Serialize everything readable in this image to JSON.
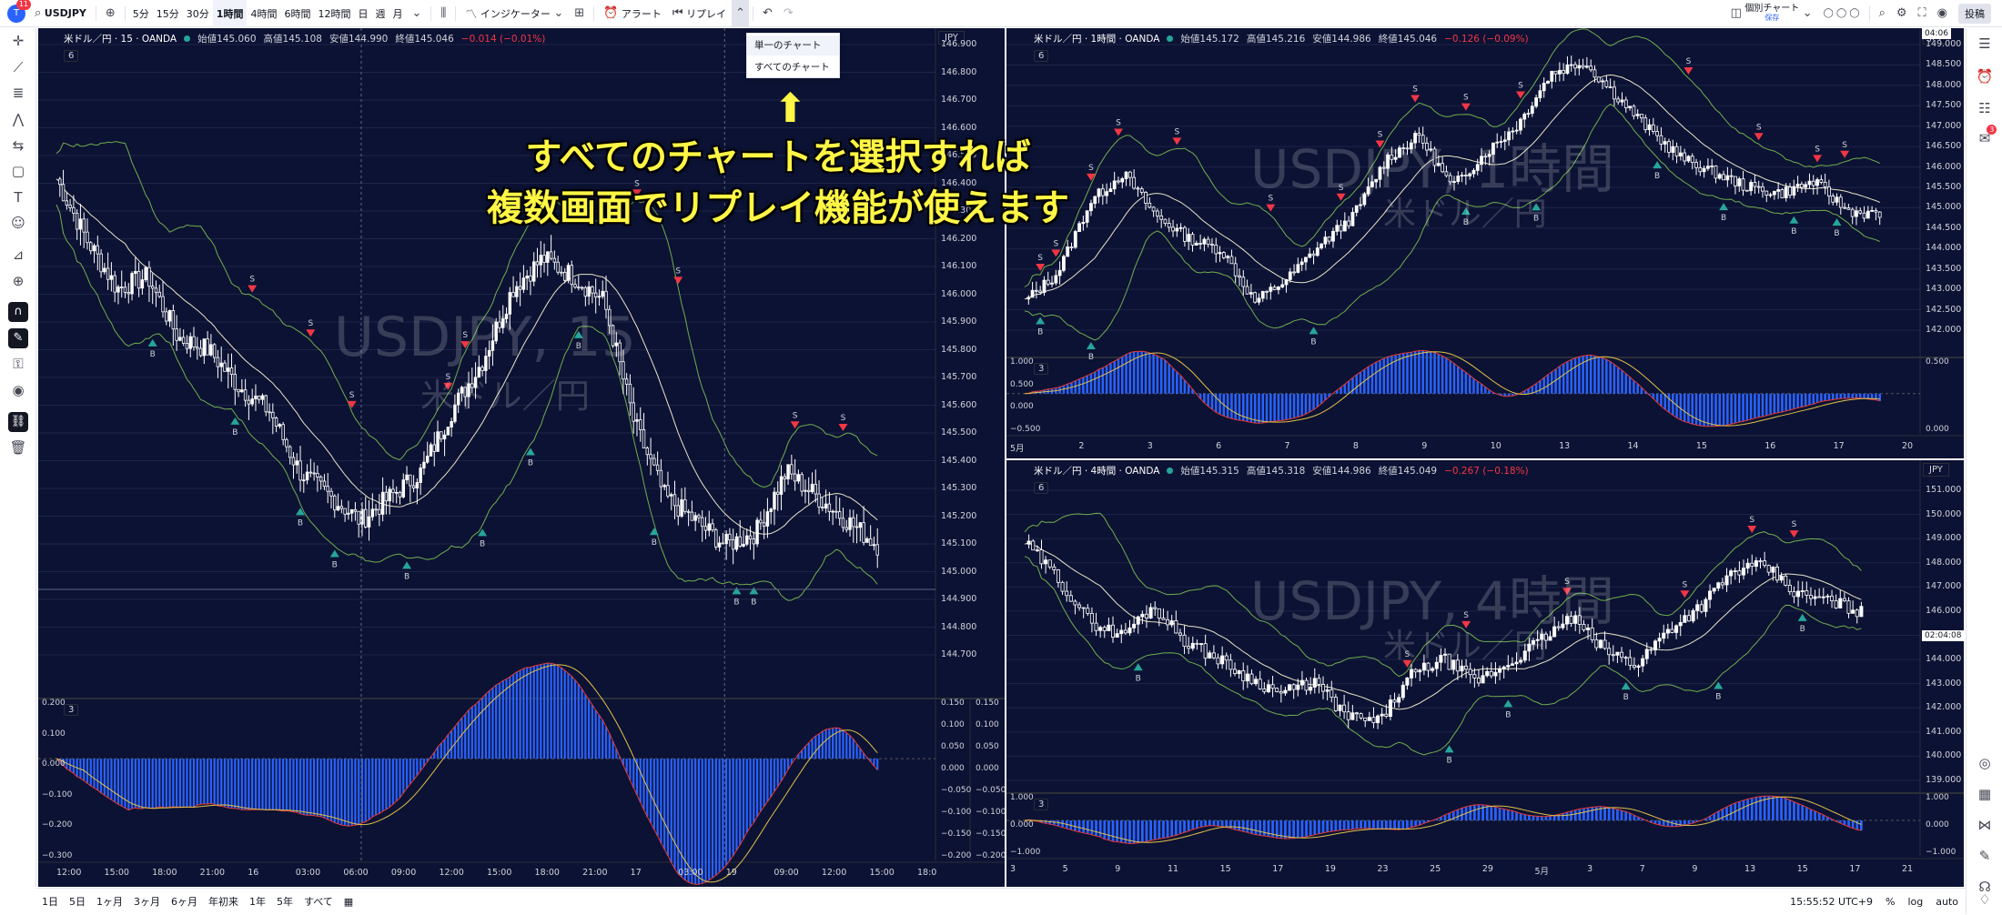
{
  "toolbar": {
    "avatar_badge": "11",
    "symbol": "USDJPY",
    "intervals": [
      "5分",
      "15分",
      "30分",
      "1時間",
      "4時間",
      "6時間",
      "12時間",
      "日",
      "週",
      "月"
    ],
    "active_interval": "1時間",
    "indicators_label": "インジケーター",
    "alert_label": "アラート",
    "replay_label": "リプレイ",
    "layout_label": "個別チャート",
    "layout_sub": "保存",
    "publish_label": "投稿"
  },
  "dropdown": {
    "items": [
      "単一のチャート",
      "すべてのチャート"
    ]
  },
  "annotation": {
    "line1": "すべてのチャートを選択すれば",
    "line2": "複数画面でリプレイ機能が使えます"
  },
  "bottom": {
    "ranges": [
      "1日",
      "5日",
      "1ヶ月",
      "3ヶ月",
      "6ヶ月",
      "年初来",
      "1年",
      "5年",
      "すべて"
    ],
    "clock": "15:55:52 UTC+9",
    "scale_pct": "%",
    "scale_log": "log",
    "scale_auto": "auto"
  },
  "right_badge": "3",
  "charts": {
    "left": {
      "title": "米ドル／円 · 15 · OANDA",
      "o_label": "始値",
      "o": "145.060",
      "h_label": "高値",
      "h": "145.108",
      "l_label": "安値",
      "l": "144.990",
      "c_label": "終値",
      "c": "145.046",
      "chg": "−0.014 (−0.01%)",
      "ind_num": "6",
      "osc_num": "3",
      "currency": "JPY",
      "watermark_sym": "USDJPY, 15",
      "watermark_name": "米ドル／円",
      "price_ticks": [
        "146.900",
        "146.800",
        "146.700",
        "146.600",
        "146.500",
        "146.400",
        "146.300",
        "146.200",
        "146.100",
        "146.000",
        "145.900",
        "145.800",
        "145.700",
        "145.600",
        "145.500",
        "145.400",
        "145.300",
        "145.200",
        "145.100",
        "145.000",
        "144.900",
        "144.800",
        "144.700"
      ],
      "osc_left": [
        "0.200",
        "0.100",
        "0.000",
        "−0.100",
        "−0.200",
        "−0.300"
      ],
      "osc_right": [
        "0.150",
        "0.100",
        "0.050",
        "0.000",
        "−0.050",
        "−0.100",
        "−0.150",
        "−0.200"
      ],
      "osc_right2": [
        "0.150",
        "0.100",
        "0.050",
        "0.000",
        "−0.050",
        "−0.100",
        "−0.150",
        "−0.200"
      ],
      "time_ticks": [
        "12:00",
        "15:00",
        "18:00",
        "21:00",
        "16",
        "03:00",
        "06:00",
        "09:00",
        "12:00",
        "15:00",
        "18:00",
        "21:00",
        "17",
        "03:00",
        "19",
        "09:00",
        "12:00",
        "15:00",
        "18:0"
      ]
    },
    "tr": {
      "title": "米ドル／円 · 1時間 · OANDA",
      "o_label": "始値",
      "o": "145.172",
      "h_label": "高値",
      "h": "145.216",
      "l_label": "安値",
      "l": "144.986",
      "c_label": "終値",
      "c": "145.046",
      "chg": "−0.126 (−0.09%)",
      "ind_num": "6",
      "osc_num": "3",
      "currency": "JPY",
      "watermark_sym": "USDJPY, 1時間",
      "watermark_name": "米ドル／円",
      "price_ticks": [
        "149.000",
        "148.500",
        "148.000",
        "147.500",
        "147.000",
        "146.500",
        "146.000",
        "145.500",
        "145.000",
        "144.500",
        "144.000",
        "143.500",
        "143.000",
        "142.500",
        "142.000"
      ],
      "price_label": "04:06",
      "osc_left": [
        "1.000",
        "0.500",
        "0.000",
        "−0.500"
      ],
      "osc_right": [
        "0.500",
        "0.000"
      ],
      "osc_right2": [
        "0.500",
        "0.000"
      ],
      "time_ticks": [
        "5月",
        "2",
        "3",
        "6",
        "7",
        "8",
        "9",
        "10",
        "13",
        "14",
        "15",
        "16",
        "17",
        "20"
      ]
    },
    "br": {
      "title": "米ドル／円 · 4時間 · OANDA",
      "o_label": "始値",
      "o": "145.315",
      "h_label": "高値",
      "h": "145.318",
      "l_label": "安値",
      "l": "144.986",
      "c_label": "終値",
      "c": "145.049",
      "chg": "−0.267 (−0.18%)",
      "ind_num": "6",
      "osc_num": "3",
      "currency": "JPY",
      "watermark_sym": "USDJPY, 4時間",
      "watermark_name": "米ドル／円",
      "price_ticks": [
        "151.000",
        "150.000",
        "149.000",
        "148.000",
        "147.000",
        "146.000",
        "145.000",
        "144.000",
        "143.000",
        "142.000",
        "141.000",
        "140.000",
        "139.000"
      ],
      "price_label": "02:04:08",
      "osc_left": [
        "1.000",
        "0.000",
        "−1.000"
      ],
      "osc_right": [
        "1.000",
        "0.000",
        "−1.000"
      ],
      "osc_right2": [],
      "time_ticks": [
        "3",
        "5",
        "9",
        "11",
        "15",
        "17",
        "19",
        "23",
        "25",
        "29",
        "5月",
        "3",
        "7",
        "9",
        "13",
        "15",
        "17",
        "21"
      ]
    }
  },
  "colors": {
    "bg": "#0c1233",
    "up": "#ffffff",
    "down": "#ffffff",
    "bb": "#6fae4f",
    "ma": "#e8e4c9",
    "macd": "#e0c14a",
    "signal": "#e53935",
    "hist": "#2962ff",
    "sell": "#f23645",
    "buy": "#26a69a"
  },
  "signals": {
    "sell": "S",
    "buy": "B"
  }
}
